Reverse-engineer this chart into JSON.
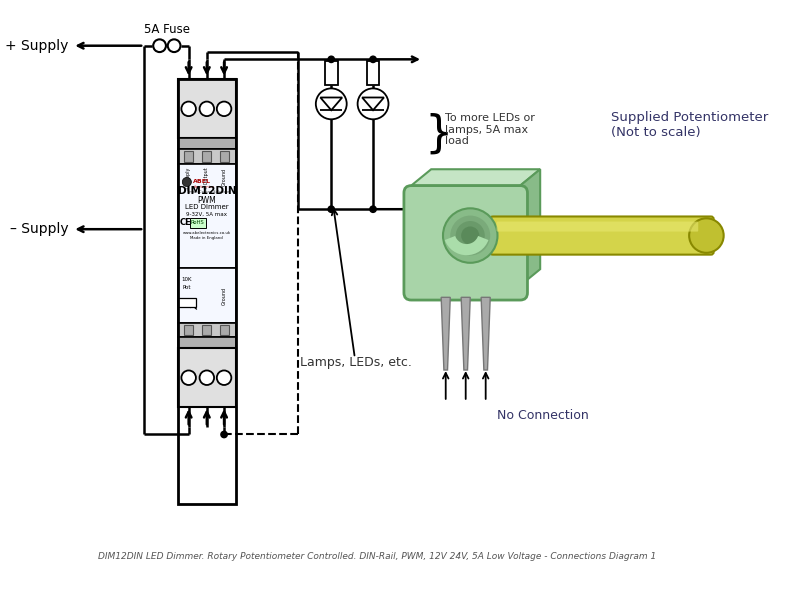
{
  "bg_color": "#ffffff",
  "lc": "#000000",
  "title": "DIM12DIN LED Dimmer. Rotary Potentiometer Controlled. DIN-Rail, PWM, 12V 24V, 5A Low Voltage - Connections Diagram 1",
  "label_plus_supply": "+ Supply",
  "label_minus_supply": "– Supply",
  "label_fuse": "5A Fuse",
  "label_lamps": "Lamps, LEDs, etc.",
  "label_more_leds": "To more LEDs or\nlamps, 5A max\nload",
  "label_pot": "Supplied Potentiometer\n(Not to scale)",
  "label_no_conn": "No Connection",
  "label_dim12din": "DIM12DIN",
  "label_pwm": "PWM",
  "label_led_dimmer": "LED Dimmer",
  "label_voltage": "9-32V, 5A max",
  "label_10k": "10K",
  "label_pot_small": "Pot",
  "label_supply_plus": "+ Supply",
  "label_output_plus": "+ Output",
  "label_ground": "Ground",
  "label_www": "www.abelectronics.co.uk",
  "label_made": "Made in England"
}
